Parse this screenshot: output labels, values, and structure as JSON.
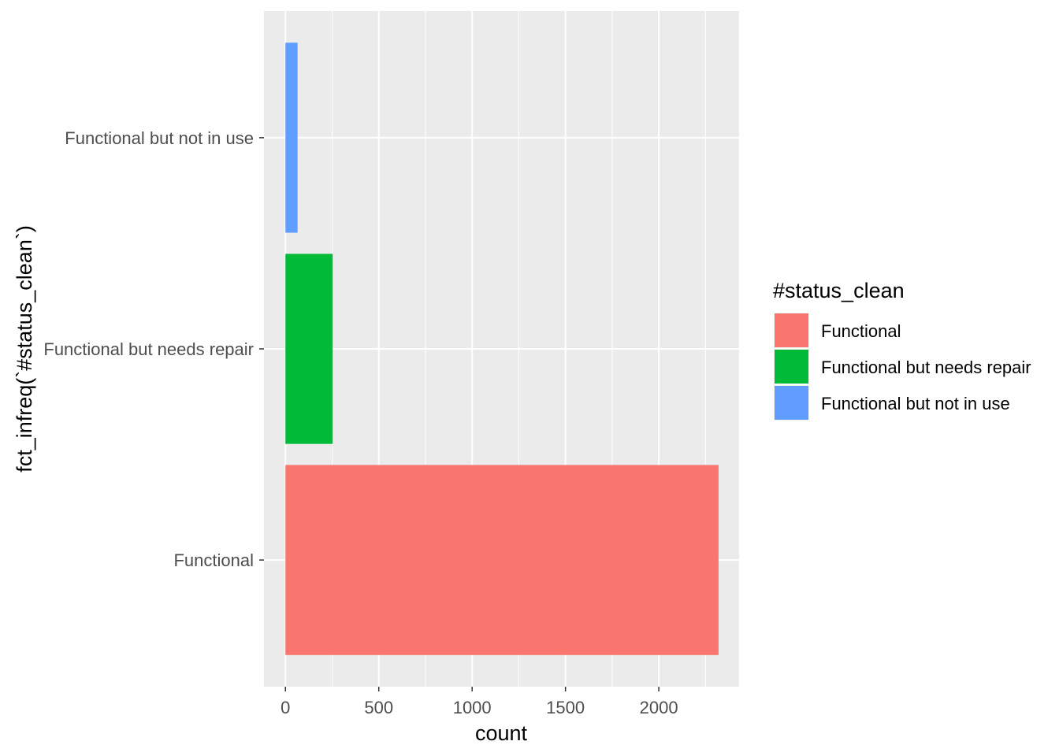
{
  "chart_data": {
    "type": "bar",
    "orientation": "horizontal",
    "categories": [
      "Functional",
      "Functional but needs repair",
      "Functional but not in use"
    ],
    "values": [
      2320,
      253,
      65
    ],
    "colors": [
      "#F8766D",
      "#00BA38",
      "#619CFF"
    ],
    "xlabel": "count",
    "ylabel": "fct_infreq(`#status_clean`)",
    "xlim": [
      -115,
      2430
    ],
    "xticks": [
      0,
      500,
      1000,
      1500,
      2000
    ],
    "xticks_minor": [
      250,
      750,
      1250,
      1750,
      2250
    ],
    "grid": true,
    "panel_background": "#EBEBEB",
    "legend": {
      "title": "#status_clean",
      "position": "right",
      "entries": [
        "Functional",
        "Functional but needs repair",
        "Functional but not in use"
      ]
    }
  }
}
